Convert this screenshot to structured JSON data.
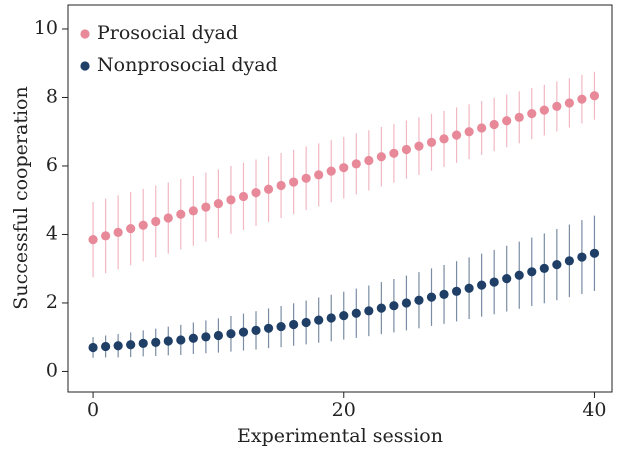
{
  "chart_data": {
    "type": "scatter",
    "xlabel": "Experimental session",
    "ylabel": "Successful cooperation",
    "x": [
      0,
      1,
      2,
      3,
      4,
      5,
      6,
      7,
      8,
      9,
      10,
      11,
      12,
      13,
      14,
      15,
      16,
      17,
      18,
      19,
      20,
      21,
      22,
      23,
      24,
      25,
      26,
      27,
      28,
      29,
      30,
      31,
      32,
      33,
      34,
      35,
      36,
      37,
      38,
      39,
      40
    ],
    "series": [
      {
        "name": "Prosocial dyad",
        "color": "#e8899a",
        "values": [
          3.85,
          3.96,
          4.06,
          4.17,
          4.27,
          4.38,
          4.48,
          4.59,
          4.69,
          4.8,
          4.9,
          5.01,
          5.11,
          5.22,
          5.32,
          5.43,
          5.53,
          5.64,
          5.74,
          5.85,
          5.95,
          6.06,
          6.16,
          6.27,
          6.37,
          6.48,
          6.58,
          6.69,
          6.79,
          6.9,
          7.0,
          7.11,
          7.21,
          7.32,
          7.42,
          7.53,
          7.63,
          7.74,
          7.84,
          7.95,
          8.05
        ],
        "errors": [
          1.1,
          1.09,
          1.08,
          1.07,
          1.06,
          1.05,
          1.04,
          1.03,
          1.02,
          1.01,
          1.0,
          0.99,
          0.98,
          0.97,
          0.96,
          0.95,
          0.94,
          0.93,
          0.92,
          0.91,
          0.9,
          0.89,
          0.88,
          0.87,
          0.86,
          0.85,
          0.84,
          0.83,
          0.82,
          0.81,
          0.8,
          0.79,
          0.78,
          0.77,
          0.76,
          0.75,
          0.74,
          0.73,
          0.72,
          0.71,
          0.7
        ]
      },
      {
        "name": "Nonprosocial dyad",
        "color": "#1f3f66",
        "values": [
          0.7,
          0.73,
          0.75,
          0.78,
          0.82,
          0.85,
          0.89,
          0.92,
          0.97,
          1.01,
          1.05,
          1.1,
          1.15,
          1.2,
          1.26,
          1.31,
          1.37,
          1.43,
          1.5,
          1.56,
          1.63,
          1.7,
          1.77,
          1.85,
          1.92,
          2.0,
          2.08,
          2.17,
          2.25,
          2.34,
          2.43,
          2.52,
          2.61,
          2.71,
          2.81,
          2.91,
          3.01,
          3.12,
          3.23,
          3.34,
          3.45
        ],
        "errors": [
          0.3,
          0.32,
          0.34,
          0.36,
          0.38,
          0.4,
          0.42,
          0.44,
          0.46,
          0.48,
          0.5,
          0.52,
          0.54,
          0.56,
          0.58,
          0.6,
          0.62,
          0.64,
          0.66,
          0.68,
          0.7,
          0.72,
          0.74,
          0.76,
          0.78,
          0.8,
          0.82,
          0.84,
          0.86,
          0.88,
          0.9,
          0.92,
          0.94,
          0.96,
          0.98,
          1.0,
          1.02,
          1.04,
          1.06,
          1.08,
          1.1
        ]
      }
    ],
    "xlim": [
      -2,
      41.4
    ],
    "ylim": [
      -0.6,
      10.7
    ],
    "xticks": [
      0,
      20,
      40
    ],
    "yticks": [
      0,
      2,
      4,
      6,
      8,
      10
    ],
    "legend": "upper left"
  }
}
